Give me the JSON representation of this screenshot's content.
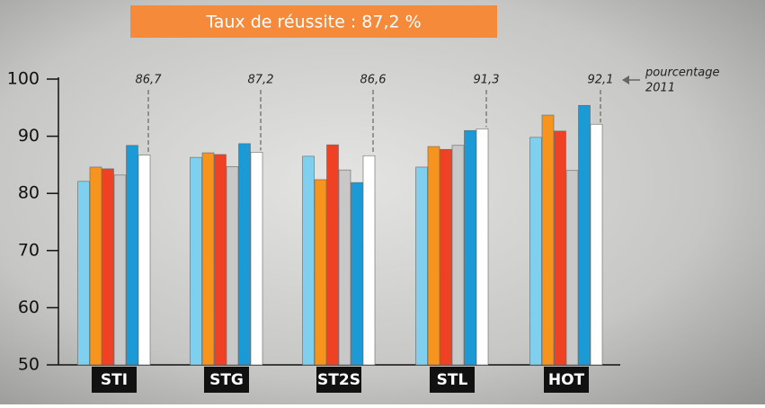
{
  "chart_data": {
    "type": "bar",
    "title": "Taux de réussite : 87,2 %",
    "categories": [
      "STI",
      "STG",
      "ST2S",
      "STL",
      "HOT"
    ],
    "series": [
      {
        "color": "#7fd0ef",
        "values": [
          82.1,
          86.3,
          86.5,
          84.6,
          89.8
        ]
      },
      {
        "color": "#f7941d",
        "values": [
          84.6,
          87.1,
          82.4,
          88.2,
          93.7
        ]
      },
      {
        "color": "#ef4123",
        "values": [
          84.3,
          86.8,
          88.5,
          87.7,
          90.9
        ]
      },
      {
        "color": "#c8c8c8",
        "values": [
          83.2,
          84.7,
          84.1,
          88.4,
          84.0
        ]
      },
      {
        "color": "#1b9ad6",
        "values": [
          88.4,
          88.7,
          81.9,
          91.0,
          95.4
        ]
      },
      {
        "color": "#ffffff",
        "values": [
          86.7,
          87.2,
          86.6,
          91.3,
          92.1
        ],
        "value_labels": [
          "86,7",
          "87,2",
          "86,6",
          "91,3",
          "92,1"
        ]
      }
    ],
    "annotation": [
      "pourcentage",
      "2011"
    ],
    "ylim": [
      50,
      100
    ],
    "yticks": [
      50,
      60,
      70,
      80,
      90,
      100
    ]
  }
}
